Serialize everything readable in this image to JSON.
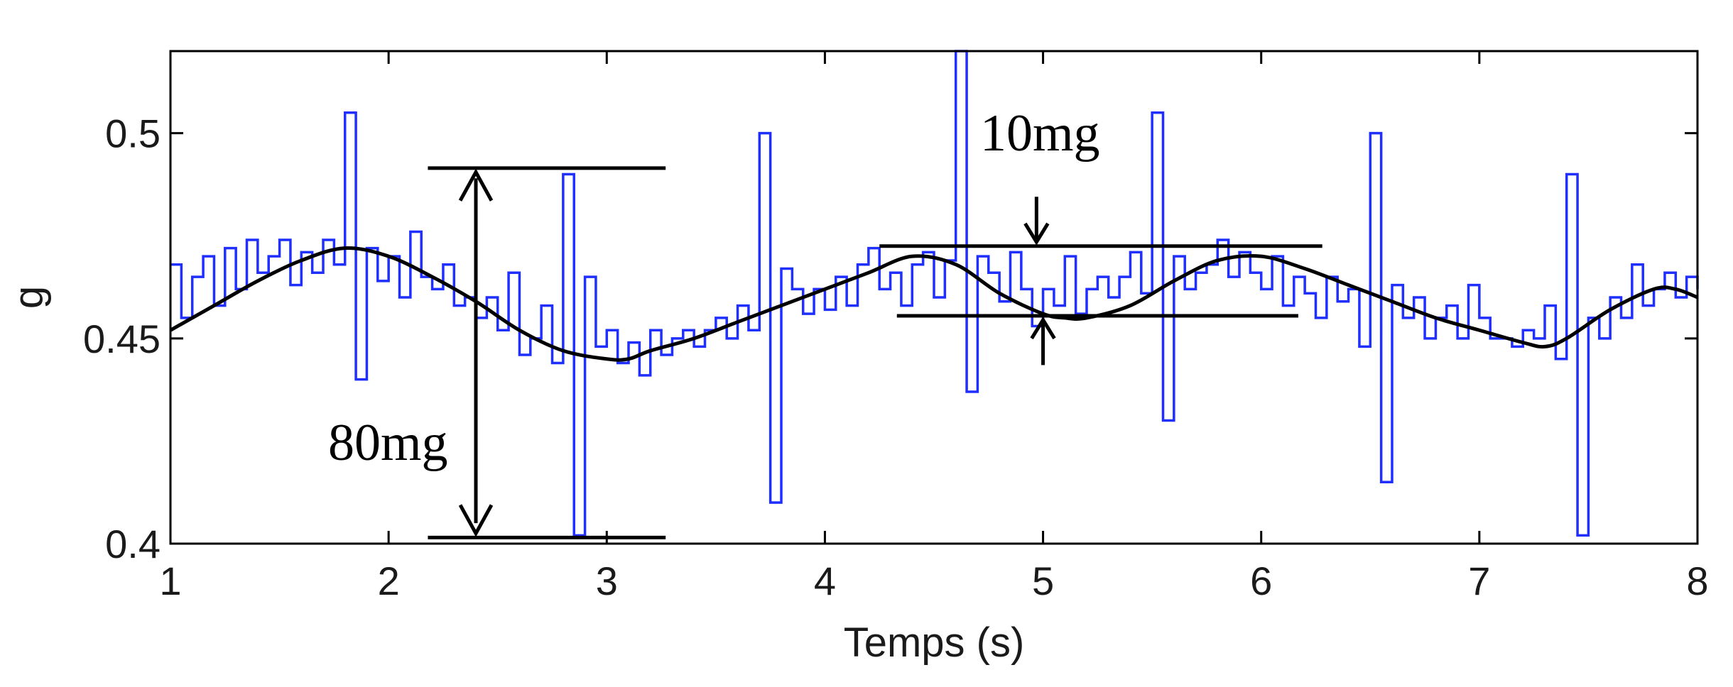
{
  "chart_data": {
    "type": "line",
    "xlabel": "Temps (s)",
    "ylabel": "g",
    "xlim": [
      1,
      8
    ],
    "ylim": [
      0.4,
      0.52
    ],
    "xticks": [
      1,
      2,
      3,
      4,
      5,
      6,
      7,
      8
    ],
    "xtick_labels": [
      "1",
      "2",
      "3",
      "4",
      "5",
      "6",
      "7",
      "8"
    ],
    "yticks": [
      0.4,
      0.45,
      0.5
    ],
    "ytick_labels": [
      "0.4",
      "0.45",
      "0.5"
    ],
    "grid": false,
    "series": [
      {
        "color": "#1f2fff",
        "style": "noisy",
        "x": [
          1.0,
          1.05,
          1.1,
          1.15,
          1.2,
          1.25,
          1.3,
          1.35,
          1.4,
          1.45,
          1.5,
          1.55,
          1.6,
          1.65,
          1.7,
          1.75,
          1.8,
          1.85,
          1.9,
          1.95,
          2.0,
          2.05,
          2.1,
          2.15,
          2.2,
          2.25,
          2.3,
          2.35,
          2.4,
          2.45,
          2.5,
          2.55,
          2.6,
          2.65,
          2.7,
          2.75,
          2.8,
          2.85,
          2.9,
          2.95,
          3.0,
          3.05,
          3.1,
          3.15,
          3.2,
          3.25,
          3.3,
          3.35,
          3.4,
          3.45,
          3.5,
          3.55,
          3.6,
          3.65,
          3.7,
          3.75,
          3.8,
          3.85,
          3.9,
          3.95,
          4.0,
          4.05,
          4.1,
          4.15,
          4.2,
          4.25,
          4.3,
          4.35,
          4.4,
          4.45,
          4.5,
          4.55,
          4.6,
          4.65,
          4.7,
          4.75,
          4.8,
          4.85,
          4.9,
          4.95,
          5.0,
          5.05,
          5.1,
          5.15,
          5.2,
          5.25,
          5.3,
          5.35,
          5.4,
          5.45,
          5.5,
          5.55,
          5.6,
          5.65,
          5.7,
          5.75,
          5.8,
          5.85,
          5.9,
          5.95,
          6.0,
          6.05,
          6.1,
          6.15,
          6.2,
          6.25,
          6.3,
          6.35,
          6.4,
          6.45,
          6.5,
          6.55,
          6.6,
          6.65,
          6.7,
          6.75,
          6.8,
          6.85,
          6.9,
          6.95,
          7.0,
          7.05,
          7.1,
          7.15,
          7.2,
          7.25,
          7.3,
          7.35,
          7.4,
          7.45,
          7.5,
          7.55,
          7.6,
          7.65,
          7.7,
          7.75,
          7.8,
          7.85,
          7.9,
          7.95,
          8.0
        ],
        "y": [
          0.468,
          0.455,
          0.465,
          0.47,
          0.458,
          0.472,
          0.462,
          0.474,
          0.466,
          0.47,
          0.474,
          0.463,
          0.471,
          0.466,
          0.474,
          0.468,
          0.505,
          0.44,
          0.472,
          0.464,
          0.47,
          0.46,
          0.476,
          0.465,
          0.462,
          0.468,
          0.458,
          0.46,
          0.455,
          0.46,
          0.452,
          0.466,
          0.446,
          0.45,
          0.458,
          0.444,
          0.49,
          0.402,
          0.465,
          0.448,
          0.452,
          0.444,
          0.449,
          0.441,
          0.452,
          0.446,
          0.45,
          0.452,
          0.448,
          0.452,
          0.455,
          0.45,
          0.458,
          0.452,
          0.5,
          0.41,
          0.467,
          0.462,
          0.456,
          0.462,
          0.457,
          0.465,
          0.458,
          0.468,
          0.472,
          0.462,
          0.466,
          0.458,
          0.468,
          0.471,
          0.46,
          0.469,
          0.52,
          0.437,
          0.47,
          0.466,
          0.459,
          0.471,
          0.462,
          0.453,
          0.462,
          0.458,
          0.47,
          0.456,
          0.462,
          0.465,
          0.46,
          0.465,
          0.471,
          0.461,
          0.505,
          0.43,
          0.47,
          0.462,
          0.466,
          0.468,
          0.474,
          0.465,
          0.471,
          0.466,
          0.462,
          0.47,
          0.458,
          0.465,
          0.461,
          0.455,
          0.465,
          0.459,
          0.462,
          0.448,
          0.5,
          0.415,
          0.463,
          0.455,
          0.46,
          0.45,
          0.455,
          0.458,
          0.45,
          0.463,
          0.455,
          0.45,
          0.45,
          0.448,
          0.452,
          0.45,
          0.458,
          0.445,
          0.49,
          0.402,
          0.455,
          0.45,
          0.46,
          0.455,
          0.468,
          0.458,
          0.462,
          0.466,
          0.46,
          0.465,
          0.462
        ]
      },
      {
        "color": "#000000",
        "style": "smooth",
        "x": [
          1.0,
          1.2,
          1.4,
          1.6,
          1.8,
          2.0,
          2.2,
          2.4,
          2.6,
          2.8,
          3.0,
          3.1,
          3.2,
          3.4,
          3.6,
          3.8,
          4.0,
          4.2,
          4.4,
          4.6,
          4.8,
          5.0,
          5.1,
          5.2,
          5.4,
          5.6,
          5.8,
          6.0,
          6.2,
          6.4,
          6.6,
          6.8,
          7.0,
          7.2,
          7.3,
          7.4,
          7.6,
          7.8,
          7.9,
          8.0
        ],
        "y": [
          0.452,
          0.458,
          0.464,
          0.469,
          0.472,
          0.47,
          0.465,
          0.459,
          0.452,
          0.447,
          0.445,
          0.445,
          0.447,
          0.45,
          0.454,
          0.458,
          0.462,
          0.466,
          0.47,
          0.468,
          0.461,
          0.456,
          0.455,
          0.455,
          0.458,
          0.464,
          0.469,
          0.47,
          0.467,
          0.463,
          0.459,
          0.455,
          0.452,
          0.449,
          0.448,
          0.45,
          0.457,
          0.462,
          0.462,
          0.46
        ]
      }
    ],
    "annotations": [
      {
        "text": "80mg",
        "x": 2.0,
        "y": 0.425
      },
      {
        "text": "10mg",
        "x": 5.0,
        "y": 0.495
      }
    ]
  }
}
